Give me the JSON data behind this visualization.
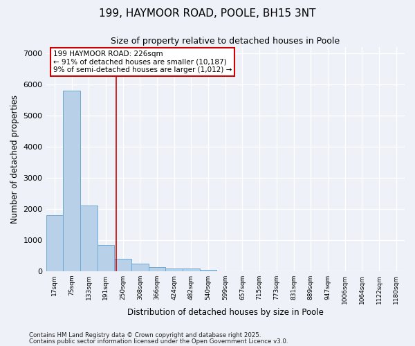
{
  "title_line1": "199, HAYMOOR ROAD, POOLE, BH15 3NT",
  "title_line2": "Size of property relative to detached houses in Poole",
  "xlabel": "Distribution of detached houses by size in Poole",
  "ylabel": "Number of detached properties",
  "bar_labels": [
    "17sqm",
    "75sqm",
    "133sqm",
    "191sqm",
    "250sqm",
    "308sqm",
    "366sqm",
    "424sqm",
    "482sqm",
    "540sqm",
    "599sqm",
    "657sqm",
    "715sqm",
    "773sqm",
    "831sqm",
    "889sqm",
    "947sqm",
    "1006sqm",
    "1064sqm",
    "1122sqm",
    "1180sqm"
  ],
  "bar_values": [
    1800,
    5800,
    2100,
    840,
    390,
    240,
    130,
    95,
    90,
    40,
    5,
    2,
    0,
    0,
    0,
    0,
    0,
    0,
    0,
    0,
    0
  ],
  "bar_color": "#b8d0e8",
  "bar_edge_color": "#6aaad4",
  "annotation_box_text": "199 HAYMOOR ROAD: 226sqm\n← 91% of detached houses are smaller (10,187)\n9% of semi-detached houses are larger (1,012) →",
  "vline_color": "#cc0000",
  "vline_x": 3.59,
  "ylim": [
    0,
    7200
  ],
  "yticks": [
    0,
    1000,
    2000,
    3000,
    4000,
    5000,
    6000,
    7000
  ],
  "background_color": "#eef1f8",
  "grid_color": "#ffffff",
  "footer_line1": "Contains HM Land Registry data © Crown copyright and database right 2025.",
  "footer_line2": "Contains public sector information licensed under the Open Government Licence v3.0."
}
